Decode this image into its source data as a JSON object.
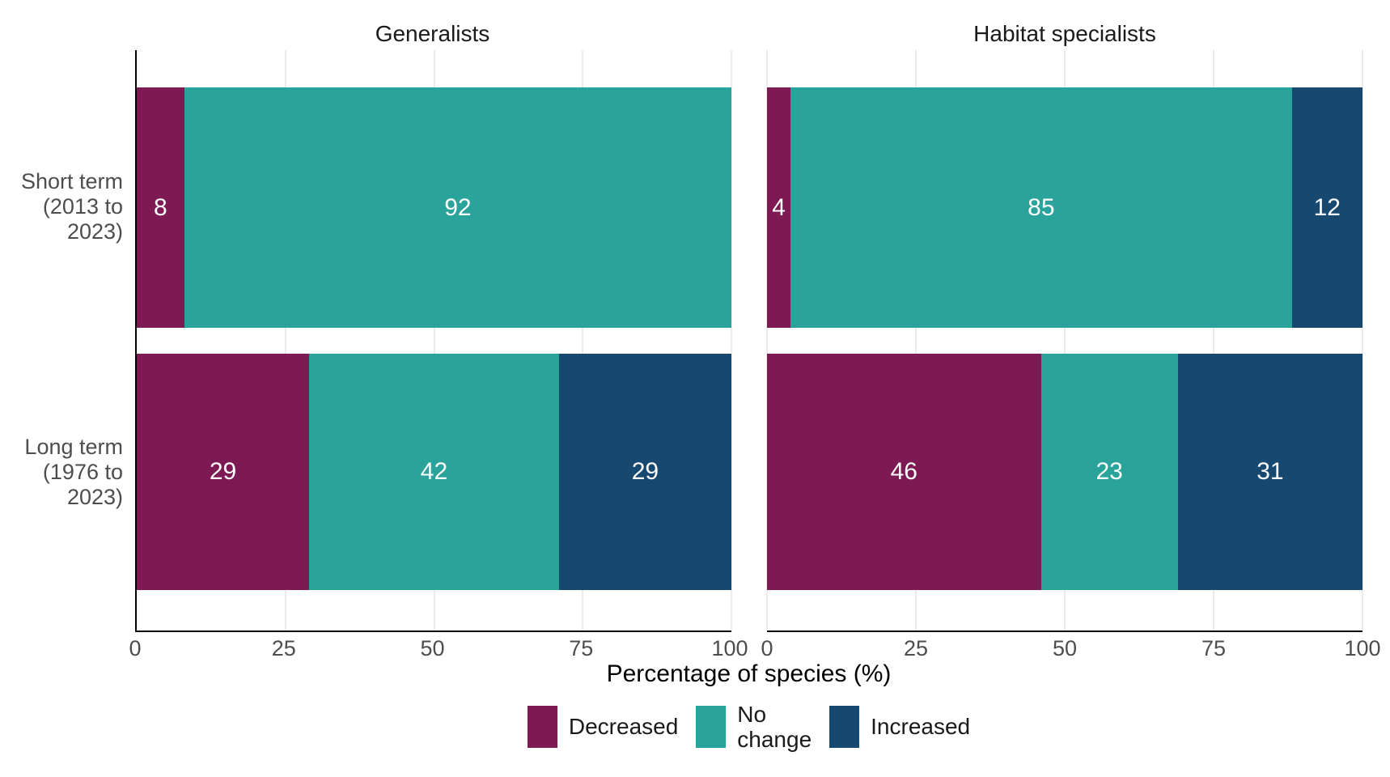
{
  "chart_data": {
    "type": "bar",
    "orientation": "horizontal",
    "stacked": true,
    "units": "percent",
    "xlabel": "Percentage of species (%)",
    "x_ticks": [
      "0",
      "25",
      "50",
      "75",
      "100"
    ],
    "xlim": [
      0,
      100
    ],
    "grid": "vertical-major",
    "legend_position": "bottom",
    "categories": [
      {
        "label": "Short term (2013 to 2023)",
        "lines": [
          "Short term",
          "(2013 to",
          "2023)"
        ]
      },
      {
        "label": "Long term (1976 to 2023)",
        "lines": [
          "Long term",
          "(1976 to",
          "2023)"
        ]
      }
    ],
    "series": [
      {
        "name": "Decreased",
        "color": "#7d1a54"
      },
      {
        "name": "No change",
        "color": "#2aa49a"
      },
      {
        "name": "Increased",
        "color": "#17486f"
      }
    ],
    "facets": [
      {
        "title": "Generalists",
        "values": [
          [
            8,
            92,
            0
          ],
          [
            29,
            42,
            29
          ]
        ]
      },
      {
        "title": "Habitat specialists",
        "values": [
          [
            4,
            85,
            12
          ],
          [
            46,
            23,
            31
          ]
        ]
      }
    ]
  },
  "style": {
    "axis_line_color": "#000000",
    "gridline_color": "#ebebeb",
    "axis_text_color": "#4d4d4d",
    "bar_label_color": "#ffffff",
    "background": "#ffffff"
  }
}
